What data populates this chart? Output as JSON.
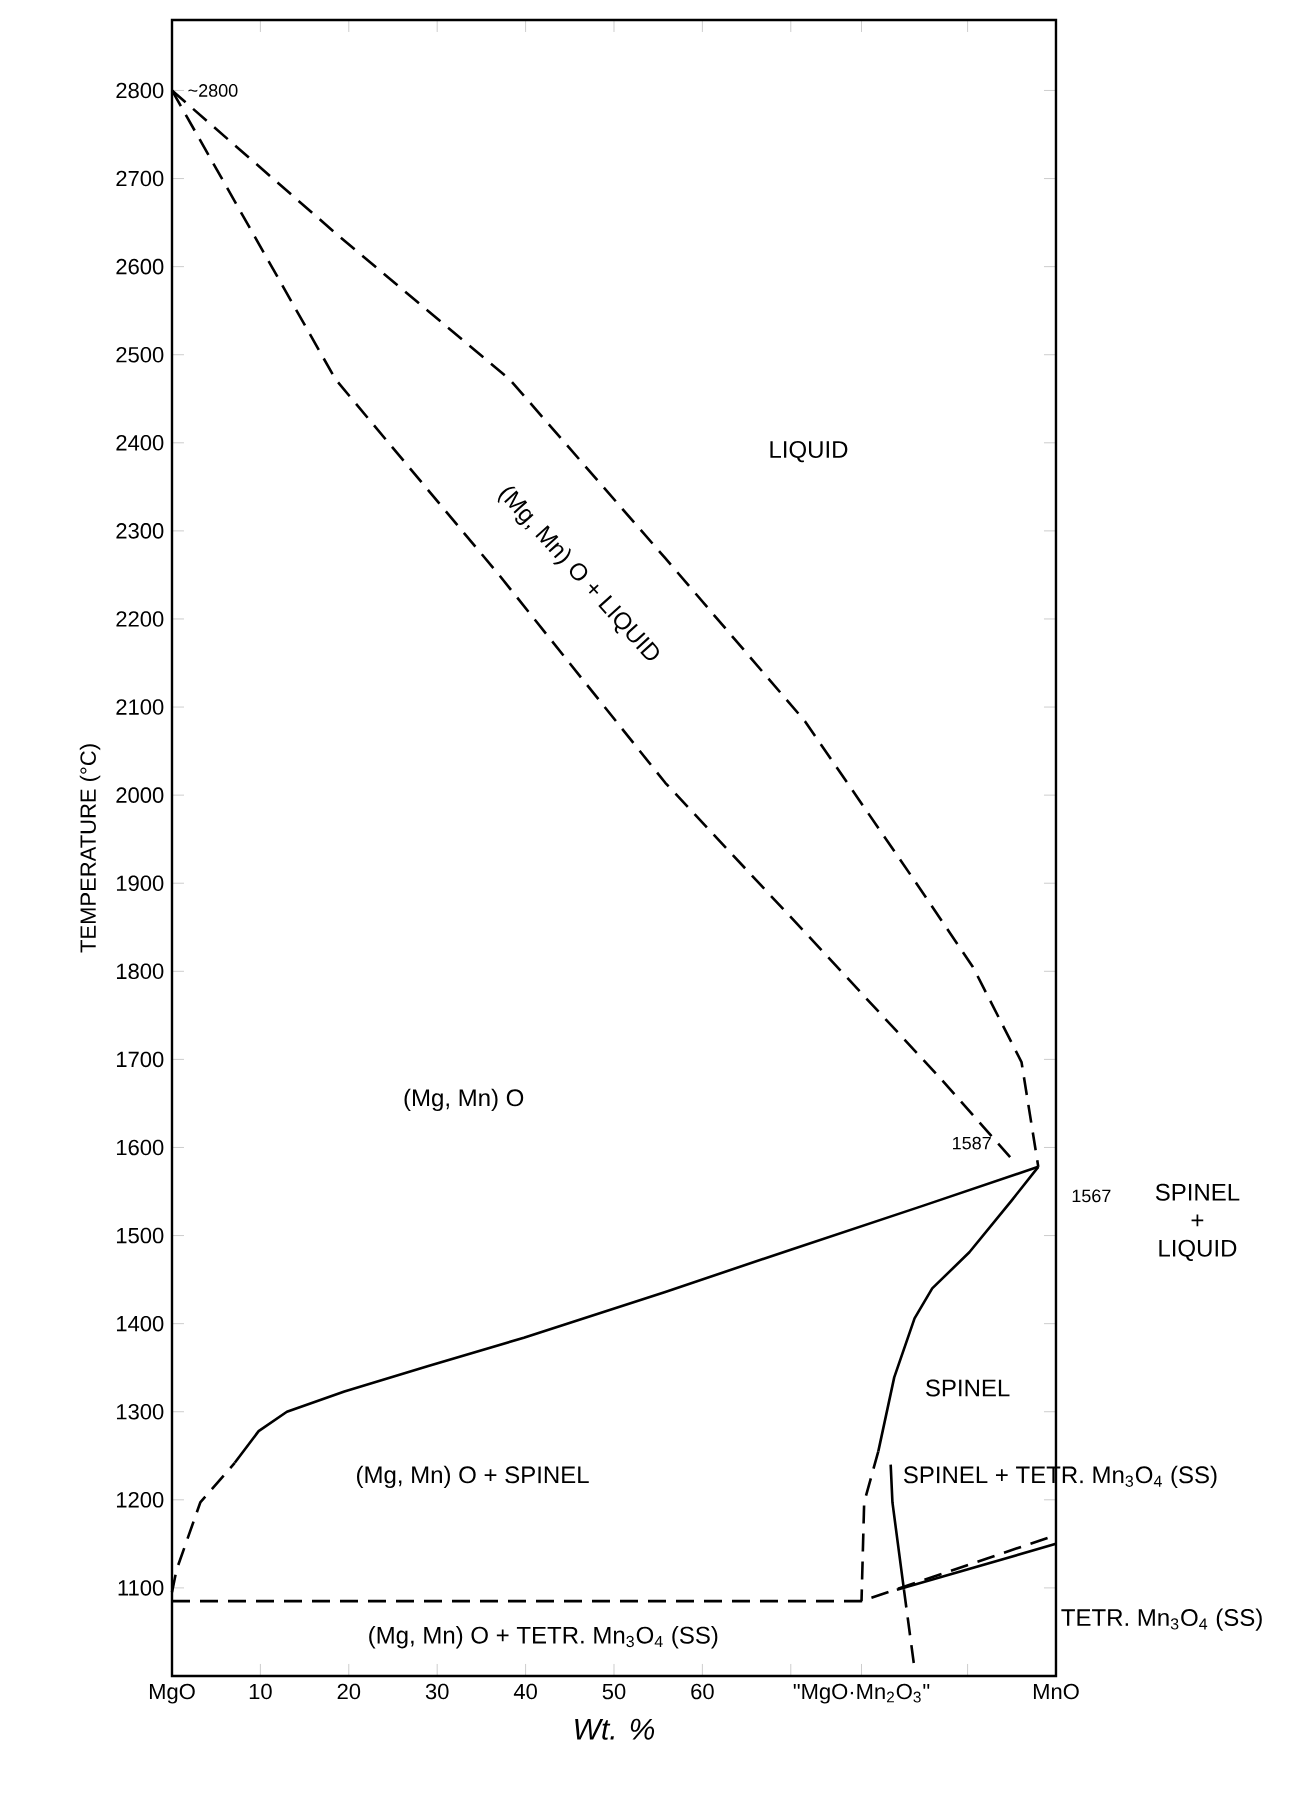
{
  "chart_data": {
    "type": "line",
    "xlabel": "Wt. %",
    "ylabel": "TEMPERATURE (°C)",
    "xlim": [
      0,
      100
    ],
    "ylim": [
      1000,
      2880
    ],
    "xticks": [
      {
        "value": 0,
        "label": "MgO"
      },
      10,
      20,
      30,
      40,
      50,
      60,
      {
        "value": 70,
        "label": null
      },
      {
        "value": 78,
        "label": "\"MgO·Mn$_{2}$O$_{3}$\""
      },
      {
        "value": 90,
        "label": null
      },
      {
        "value": 100,
        "label": "MnO"
      }
    ],
    "yticks": [
      1100,
      1200,
      1300,
      1400,
      1500,
      1600,
      1700,
      1800,
      1900,
      2000,
      2100,
      2200,
      2300,
      2400,
      2500,
      2600,
      2700,
      2800
    ],
    "series": [
      {
        "type": "line",
        "color": "#000000",
        "line_style": "dashed",
        "x": [
          0,
          18.5,
          38.2,
          55.8,
          71.6,
          84.2,
          90.6,
          96.1,
          98
        ],
        "values": [
          2800,
          2638,
          2472,
          2269,
          2084,
          1900,
          1805,
          1697,
          1578
        ]
      },
      {
        "type": "line",
        "color": "#000000",
        "line_style": "dashed",
        "x": [
          0,
          18.5,
          37,
          55.8,
          72,
          86.7,
          95
        ],
        "values": [
          2800,
          2472,
          2250,
          2014,
          1840,
          1681,
          1587
        ]
      },
      {
        "type": "line",
        "color": "#000000",
        "line_style": "dashed",
        "x": [
          0,
          0.5,
          3.2,
          7.1
        ],
        "values": [
          1095,
          1120,
          1197,
          1242
        ]
      },
      {
        "type": "line",
        "color": "#000000",
        "line_style": "dashed",
        "x": [
          0,
          78,
          100
        ],
        "values": [
          1085,
          1085,
          1160
        ]
      },
      {
        "type": "line",
        "color": "#000000",
        "line_style": "solid",
        "x": [
          7.1,
          9.8,
          13,
          19.5,
          29,
          39.8,
          55.8,
          70,
          85,
          98
        ],
        "values": [
          1242,
          1278,
          1300,
          1323,
          1352,
          1384,
          1436,
          1484,
          1534,
          1578
        ]
      },
      {
        "type": "line",
        "color": "#000000",
        "line_style": "solid",
        "x": [
          98,
          95,
          90.2,
          86,
          84,
          81.7,
          79.9
        ],
        "values": [
          1578,
          1540,
          1481,
          1440,
          1406,
          1339,
          1255
        ]
      },
      {
        "type": "line",
        "color": "#000000",
        "line_style": "dashed",
        "x": [
          79.9,
          78.3,
          78
        ],
        "values": [
          1255,
          1197,
          1085
        ]
      },
      {
        "type": "line",
        "color": "#000000",
        "line_style": "solid",
        "x": [
          82,
          100
        ],
        "values": [
          1098,
          1150
        ]
      },
      {
        "type": "line",
        "color": "#000000",
        "line_style": "solid",
        "x": [
          81.3,
          81.5,
          82.8
        ],
        "values": [
          1240,
          1197,
          1098
        ]
      },
      {
        "type": "line",
        "color": "#000000",
        "line_style": "dashed",
        "x": [
          82.8,
          84
        ],
        "values": [
          1098,
          1008
        ]
      }
    ],
    "annotations": [
      "LIQUID",
      "(Mg, Mn) O + LIQUID",
      "(Mg, Mn) O",
      "(Mg, Mn) O + SPINEL",
      "(Mg, Mn) O + TETR. Mn$_{3}$O$_{4}$ (SS)",
      "SPINEL",
      "SPINEL + TETR. Mn$_{3}$O$_{4}$ (SS)",
      "TETR. Mn$_{3}$O$_{4}$ (SS)",
      "SPINEL + LIQUID",
      {
        "text": "~2800",
        "x": 0,
        "y": 2800
      },
      {
        "text": "1587",
        "x": 95,
        "y": 1587
      },
      "1567"
    ]
  }
}
